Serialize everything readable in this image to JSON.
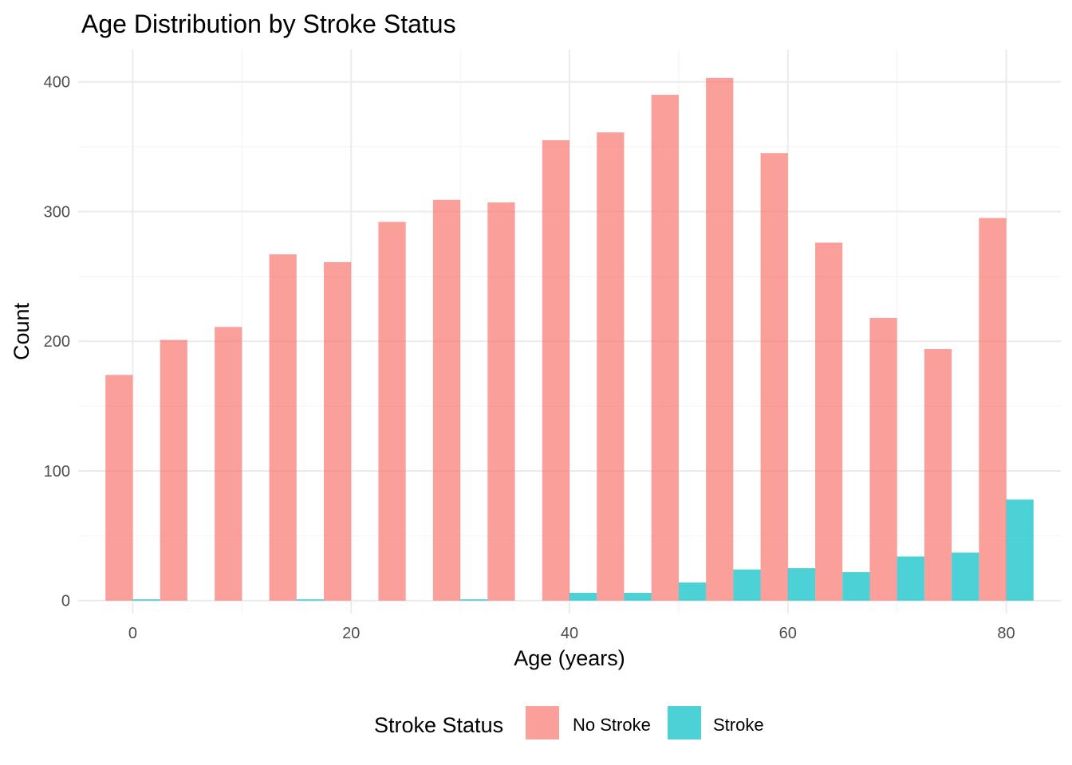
{
  "chart_data": {
    "type": "bar",
    "title": "Age Distribution by Stroke Status",
    "xlabel": "Age (years)",
    "ylabel": "Count",
    "xlim": [
      -5,
      85
    ],
    "ylim": [
      -10,
      425
    ],
    "x_ticks": [
      0,
      20,
      40,
      60,
      80
    ],
    "x_tick_labels": [
      "0",
      "20",
      "40",
      "60",
      "80"
    ],
    "y_ticks": [
      0,
      100,
      200,
      300,
      400
    ],
    "y_tick_labels": [
      "0",
      "100",
      "200",
      "300",
      "400"
    ],
    "grid": true,
    "legend": {
      "title": "Stroke Status",
      "position": "bottom"
    },
    "bins": [
      {
        "start": -2.5,
        "end": 2.5
      },
      {
        "start": 2.5,
        "end": 7.5
      },
      {
        "start": 7.5,
        "end": 12.5
      },
      {
        "start": 12.5,
        "end": 17.5
      },
      {
        "start": 17.5,
        "end": 22.5
      },
      {
        "start": 22.5,
        "end": 27.5
      },
      {
        "start": 27.5,
        "end": 32.5
      },
      {
        "start": 32.5,
        "end": 37.5
      },
      {
        "start": 37.5,
        "end": 42.5
      },
      {
        "start": 42.5,
        "end": 47.5
      },
      {
        "start": 47.5,
        "end": 52.5
      },
      {
        "start": 52.5,
        "end": 57.5
      },
      {
        "start": 57.5,
        "end": 62.5
      },
      {
        "start": 62.5,
        "end": 67.5
      },
      {
        "start": 67.5,
        "end": 72.5
      },
      {
        "start": 72.5,
        "end": 77.5
      },
      {
        "start": 77.5,
        "end": 82.5
      }
    ],
    "series": [
      {
        "name": "No Stroke",
        "color": "#F8766D",
        "values": [
          174,
          201,
          211,
          267,
          261,
          292,
          309,
          307,
          355,
          361,
          390,
          403,
          345,
          276,
          218,
          194,
          295
        ]
      },
      {
        "name": "Stroke",
        "color": "#00BFC4",
        "values": [
          1,
          0,
          0,
          1,
          0,
          0,
          1,
          0,
          6,
          6,
          14,
          24,
          25,
          22,
          34,
          37,
          78
        ]
      }
    ]
  }
}
